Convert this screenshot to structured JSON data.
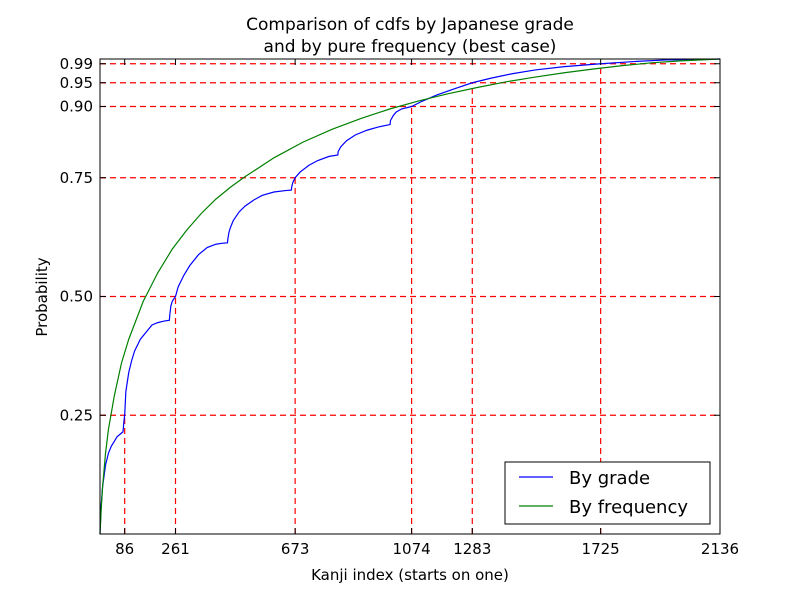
{
  "chart_data": {
    "type": "line",
    "title_line1": "Comparison of cdfs by Japanese grade",
    "title_line2": "and by pure frequency (best case)",
    "xlabel": "Kanji index (starts on one)",
    "ylabel": "Probability",
    "xlim": [
      1,
      2136
    ],
    "ylim": [
      0,
      1.0
    ],
    "x_ticks": [
      86,
      261,
      673,
      1074,
      1283,
      1725,
      2136
    ],
    "x_tick_labels": [
      "86",
      "261",
      "673",
      "1074",
      "1283",
      "1725",
      "2136"
    ],
    "y_ticks": [
      0.25,
      0.5,
      0.75,
      0.9,
      0.95,
      0.99
    ],
    "y_tick_labels": [
      "0.25",
      "0.50",
      "0.75",
      "0.90",
      "0.95",
      "0.99"
    ],
    "grid": false,
    "legend_position": "lower-right",
    "reference_lines": [
      {
        "x": 86,
        "y": 0.25
      },
      {
        "x": 261,
        "y": 0.5
      },
      {
        "x": 673,
        "y": 0.75
      },
      {
        "x": 1074,
        "y": 0.9
      },
      {
        "x": 1283,
        "y": 0.95
      },
      {
        "x": 1725,
        "y": 0.99
      }
    ],
    "reference_line_color": "#ff0000",
    "series": [
      {
        "name": "By grade",
        "color": "#0000ff",
        "x": [
          1,
          5,
          10,
          20,
          30,
          40,
          50,
          60,
          70,
          80,
          81,
          83,
          86,
          90,
          100,
          110,
          120,
          140,
          160,
          180,
          200,
          220,
          240,
          241,
          245,
          250,
          261,
          270,
          290,
          310,
          340,
          370,
          400,
          420,
          440,
          441,
          445,
          450,
          460,
          480,
          500,
          530,
          560,
          600,
          640,
          660,
          661,
          665,
          673,
          690,
          720,
          750,
          790,
          820,
          821,
          830,
          850,
          880,
          920,
          960,
          1000,
          1001,
          1010,
          1020,
          1040,
          1074,
          1110,
          1160,
          1220,
          1283,
          1350,
          1420,
          1500,
          1600,
          1725,
          1850,
          1950,
          2050,
          2136
        ],
        "y": [
          0.0,
          0.06,
          0.1,
          0.145,
          0.17,
          0.185,
          0.195,
          0.205,
          0.21,
          0.215,
          0.22,
          0.235,
          0.25,
          0.3,
          0.34,
          0.365,
          0.385,
          0.41,
          0.425,
          0.44,
          0.445,
          0.448,
          0.45,
          0.46,
          0.48,
          0.49,
          0.5,
          0.52,
          0.545,
          0.565,
          0.588,
          0.603,
          0.61,
          0.612,
          0.613,
          0.62,
          0.635,
          0.645,
          0.66,
          0.678,
          0.69,
          0.703,
          0.713,
          0.72,
          0.723,
          0.724,
          0.73,
          0.74,
          0.75,
          0.762,
          0.776,
          0.786,
          0.795,
          0.798,
          0.805,
          0.815,
          0.828,
          0.84,
          0.85,
          0.857,
          0.862,
          0.87,
          0.88,
          0.888,
          0.895,
          0.9,
          0.911,
          0.924,
          0.937,
          0.95,
          0.96,
          0.969,
          0.977,
          0.984,
          0.99,
          0.995,
          0.998,
          0.999,
          1.0
        ]
      },
      {
        "name": "By frequency",
        "color": "#008000",
        "x": [
          1,
          5,
          10,
          20,
          30,
          50,
          75,
          100,
          150,
          200,
          250,
          300,
          350,
          400,
          450,
          500,
          600,
          700,
          800,
          900,
          1000,
          1100,
          1200,
          1300,
          1400,
          1500,
          1600,
          1700,
          1800,
          1900,
          2000,
          2136
        ],
        "y": [
          0.0,
          0.05,
          0.1,
          0.17,
          0.22,
          0.29,
          0.36,
          0.41,
          0.49,
          0.55,
          0.6,
          0.64,
          0.675,
          0.705,
          0.73,
          0.752,
          0.792,
          0.825,
          0.852,
          0.875,
          0.895,
          0.912,
          0.927,
          0.94,
          0.952,
          0.962,
          0.971,
          0.979,
          0.986,
          0.992,
          0.996,
          1.0
        ]
      }
    ]
  }
}
